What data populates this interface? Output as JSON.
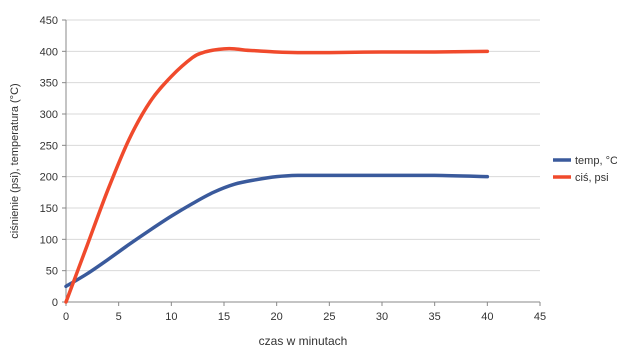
{
  "chart_data": {
    "type": "line",
    "title": "",
    "xlabel": "czas w minutach",
    "ylabel": "ciśnienie (psi), temperatura (°C)",
    "xlim": [
      0,
      45
    ],
    "ylim": [
      0,
      450
    ],
    "xticks": [
      0,
      5,
      10,
      15,
      20,
      25,
      30,
      35,
      40,
      45
    ],
    "yticks": [
      0,
      50,
      100,
      150,
      200,
      250,
      300,
      350,
      400,
      450
    ],
    "grid": "horizontal",
    "legend_position": "right",
    "series": [
      {
        "name": "temp, °C",
        "color": "#3a5a9c",
        "x": [
          0,
          2,
          4,
          6,
          8,
          10,
          12,
          14,
          16,
          18,
          20,
          22,
          25,
          30,
          35,
          40
        ],
        "y": [
          25,
          45,
          68,
          92,
          115,
          137,
          157,
          175,
          188,
          195,
          200,
          202,
          202,
          202,
          202,
          200
        ]
      },
      {
        "name": "ciś, psi",
        "color": "#f04a2c",
        "x": [
          0,
          1,
          2,
          4,
          6,
          8,
          10,
          12,
          13,
          14,
          15,
          16,
          17,
          18,
          20,
          22,
          25,
          30,
          35,
          40
        ],
        "y": [
          0,
          45,
          90,
          180,
          260,
          320,
          360,
          390,
          398,
          402,
          404,
          404,
          402,
          401,
          399,
          398,
          398,
          399,
          399,
          400
        ]
      }
    ]
  }
}
